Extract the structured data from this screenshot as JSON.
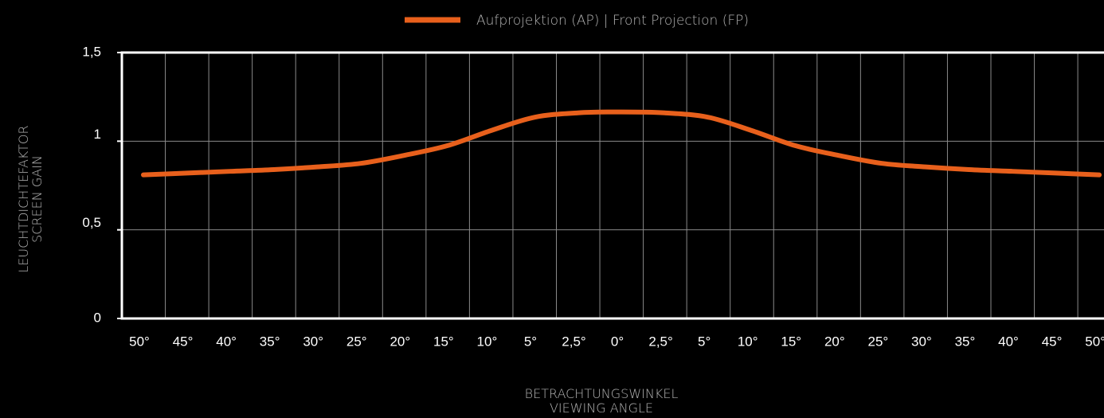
{
  "chart_data": {
    "type": "line",
    "legend_position": "top",
    "series": [
      {
        "name": "Aufprojektion (AP) | Front Projection (FP)",
        "color": "#e8601c",
        "values": [
          0.81,
          0.82,
          0.83,
          0.84,
          0.855,
          0.875,
          0.92,
          0.975,
          1.06,
          1.135,
          1.16,
          1.165,
          1.16,
          1.135,
          1.06,
          0.975,
          0.92,
          0.875,
          0.855,
          0.84,
          0.83,
          0.82,
          0.81
        ]
      }
    ],
    "categories": [
      "50°",
      "45°",
      "40°",
      "35°",
      "30°",
      "25°",
      "20°",
      "15°",
      "10°",
      "5°",
      "2,5°",
      "0°",
      "2,5°",
      "5°",
      "10°",
      "15°",
      "20°",
      "25°",
      "30°",
      "35°",
      "40°",
      "45°",
      "50°"
    ],
    "ylim": [
      0,
      1.5
    ],
    "yticks": [
      0,
      {
        "value": 0.5,
        "label": "0,5"
      },
      1,
      {
        "value": 1.5,
        "label": "1,5"
      }
    ],
    "grid": true,
    "y_label": [
      "LEUCHTDICHTEFAKTOR",
      "SCREEN GAIN"
    ],
    "x_label": [
      "BETRACHTUNGSWINKEL",
      "VIEWING ANGLE"
    ]
  }
}
